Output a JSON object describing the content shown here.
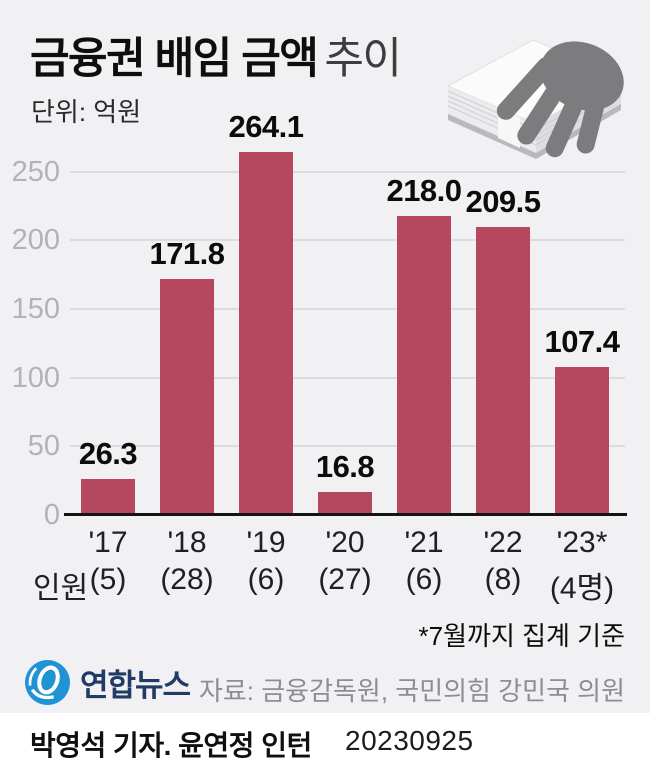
{
  "header": {
    "title_main": "금융권 배임 금액",
    "title_sub": "추이",
    "unit_label": "단위: 억원"
  },
  "chart_data": {
    "type": "bar",
    "title": "금융권 배임 금액 추이",
    "xlabel": "",
    "ylabel": "억원",
    "categories": [
      "'17",
      "'18",
      "'19",
      "'20",
      "'21",
      "'22",
      "'23*"
    ],
    "values": [
      26.3,
      171.8,
      264.1,
      16.8,
      218.0,
      209.5,
      107.4
    ],
    "counts": [
      "(5)",
      "(28)",
      "(6)",
      "(27)",
      "(6)",
      "(8)",
      "(4명)"
    ],
    "counts_prefix": "인원",
    "yticks": [
      0,
      50,
      100,
      150,
      200,
      250
    ],
    "ylim": [
      0,
      273
    ],
    "grid": true,
    "legend": false,
    "bar_color": "#b5485e"
  },
  "footnote": "*7월까지 집계 기준",
  "source": "자료: 금융감독원, 국민의힘 강민국 의원",
  "logo": {
    "text": "연합뉴스"
  },
  "byline": {
    "credit": "박영석 기자. 윤연정 인턴",
    "date": "20230925"
  },
  "colors": {
    "background": "#f1f1f3",
    "bar": "#b5485e",
    "gridline": "#dcdcdf",
    "axis": "#141414",
    "ylabel_gray": "#b3b3b6",
    "source_gray": "#8e8e92",
    "logo_blue": "#1f93d4",
    "logo_navy": "#223a66",
    "hand_gray": "#7c7c7f"
  }
}
